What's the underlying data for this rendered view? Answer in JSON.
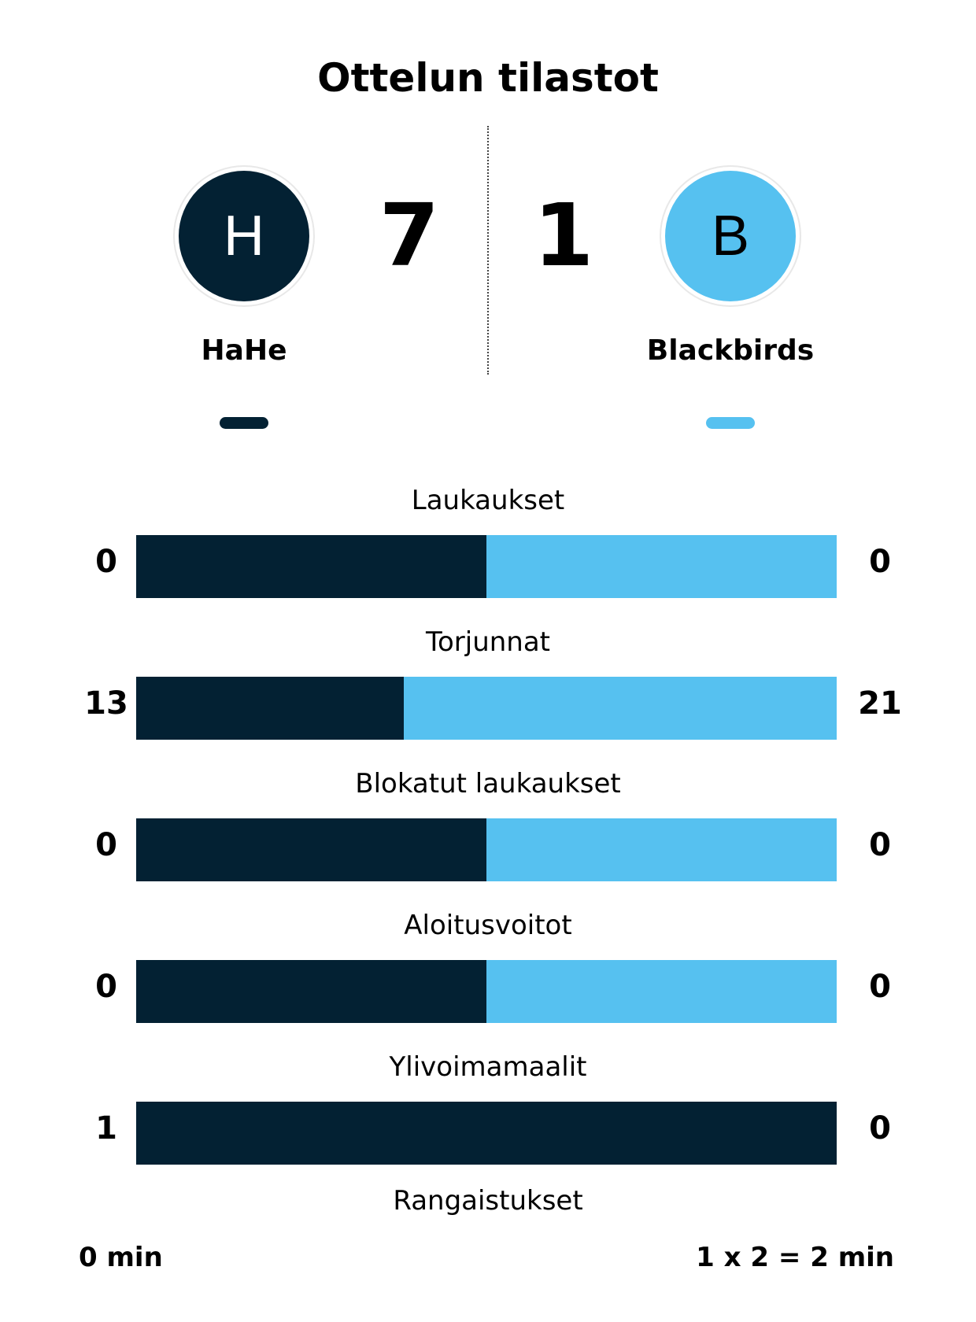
{
  "title": "Ottelun tilastot",
  "colors": {
    "home": "#032133",
    "away": "#56c1f0"
  },
  "home": {
    "initial": "H",
    "name": "HaHe",
    "score": "7"
  },
  "away": {
    "initial": "B",
    "name": "Blackbirds",
    "score": "1"
  },
  "stats": [
    {
      "label": "Laukaukset",
      "home": "0",
      "away": "0",
      "home_share": 0.5
    },
    {
      "label": "Torjunnat",
      "home": "13",
      "away": "21",
      "home_share": 0.382
    },
    {
      "label": "Blokatut laukaukset",
      "home": "0",
      "away": "0",
      "home_share": 0.5
    },
    {
      "label": "Aloitusvoitot",
      "home": "0",
      "away": "0",
      "home_share": 0.5
    },
    {
      "label": "Ylivoimamaalit",
      "home": "1",
      "away": "0",
      "home_share": 1.0
    }
  ],
  "penalties": {
    "label": "Rangaistukset",
    "home": "0 min",
    "away": "1 x 2 = 2 min"
  }
}
